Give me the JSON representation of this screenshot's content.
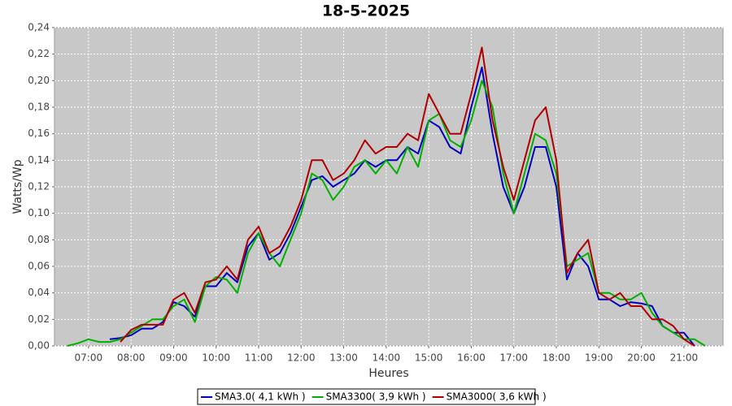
{
  "chart_data": {
    "type": "line",
    "title": "18-5-2025",
    "x_label": "Heures",
    "y_label": "Watts/Wp",
    "x": [
      6.5,
      6.75,
      7,
      7.25,
      7.5,
      7.75,
      8,
      8.25,
      8.5,
      8.75,
      9,
      9.25,
      9.5,
      9.75,
      10,
      10.25,
      10.5,
      10.75,
      11,
      11.25,
      11.5,
      11.75,
      12,
      12.25,
      12.5,
      12.75,
      13,
      13.25,
      13.5,
      13.75,
      14,
      14.25,
      14.5,
      14.75,
      15,
      15.25,
      15.5,
      15.75,
      16,
      16.25,
      16.5,
      16.75,
      17,
      17.25,
      17.5,
      17.75,
      18,
      18.25,
      18.5,
      18.75,
      19,
      19.25,
      19.5,
      19.75,
      20,
      20.25,
      20.5,
      20.75,
      21,
      21.25,
      21.5
    ],
    "series": [
      {
        "name": "SMA3.0( 4,1 kWh )",
        "color": "#0000c0",
        "values": [
          null,
          null,
          null,
          null,
          0.005,
          0.006,
          0.008,
          0.013,
          0.013,
          0.018,
          0.033,
          0.03,
          0.022,
          0.045,
          0.045,
          0.055,
          0.048,
          0.075,
          0.085,
          0.065,
          0.07,
          0.085,
          0.105,
          0.125,
          0.128,
          0.12,
          0.125,
          0.13,
          0.14,
          0.135,
          0.14,
          0.14,
          0.15,
          0.145,
          0.17,
          0.165,
          0.15,
          0.145,
          0.18,
          0.21,
          0.16,
          0.12,
          0.1,
          0.12,
          0.15,
          0.15,
          0.12,
          0.05,
          0.07,
          0.06,
          0.035,
          0.035,
          0.03,
          0.033,
          0.032,
          0.03,
          0.015,
          0.01,
          0.01,
          0,
          null
        ]
      },
      {
        "name": "SMA3300( 3,9 kWh )",
        "color": "#00b000",
        "values": [
          0,
          0.002,
          0.005,
          0.003,
          0.003,
          0.005,
          0.01,
          0.015,
          0.02,
          0.02,
          0.03,
          0.035,
          0.018,
          0.045,
          0.052,
          0.05,
          0.04,
          0.07,
          0.085,
          0.07,
          0.06,
          0.08,
          0.1,
          0.13,
          0.125,
          0.11,
          0.12,
          0.135,
          0.14,
          0.13,
          0.14,
          0.13,
          0.15,
          0.135,
          0.17,
          0.175,
          0.155,
          0.15,
          0.17,
          0.2,
          0.18,
          0.13,
          0.1,
          0.13,
          0.16,
          0.155,
          0.13,
          0.06,
          0.065,
          0.07,
          0.04,
          0.04,
          0.035,
          0.035,
          0.04,
          0.025,
          0.015,
          0.01,
          0.005,
          0.005,
          0
        ]
      },
      {
        "name": "SMA3000( 3,6 kWh )",
        "color": "#b00000",
        "values": [
          null,
          null,
          null,
          null,
          null,
          0.003,
          0.012,
          0.016,
          0.016,
          0.016,
          0.035,
          0.04,
          0.025,
          0.048,
          0.05,
          0.06,
          0.05,
          0.08,
          0.09,
          0.07,
          0.075,
          0.09,
          0.11,
          0.14,
          0.14,
          0.125,
          0.13,
          0.14,
          0.155,
          0.145,
          0.15,
          0.15,
          0.16,
          0.155,
          0.19,
          0.175,
          0.16,
          0.16,
          0.19,
          0.225,
          0.17,
          0.135,
          0.11,
          0.14,
          0.17,
          0.18,
          0.14,
          0.055,
          0.07,
          0.08,
          0.04,
          0.035,
          0.04,
          0.03,
          0.03,
          0.02,
          0.02,
          0.015,
          0.005,
          0,
          null
        ]
      }
    ],
    "xlim": [
      6.2,
      21.92
    ],
    "xticks": [
      {
        "value": 7,
        "label": "07:00"
      },
      {
        "value": 8,
        "label": "08:00"
      },
      {
        "value": 9,
        "label": "09:00"
      },
      {
        "value": 10,
        "label": "10:00"
      },
      {
        "value": 11,
        "label": "11:00"
      },
      {
        "value": 12,
        "label": "12:00"
      },
      {
        "value": 13,
        "label": "13:00"
      },
      {
        "value": 14,
        "label": "14:00"
      },
      {
        "value": 15,
        "label": "15:00"
      },
      {
        "value": 16,
        "label": "16:00"
      },
      {
        "value": 17,
        "label": "17:00"
      },
      {
        "value": 18,
        "label": "18:00"
      },
      {
        "value": 19,
        "label": "19:00"
      },
      {
        "value": 20,
        "label": "20:00"
      },
      {
        "value": 21,
        "label": "21:00"
      }
    ],
    "ylim": [
      0,
      0.24
    ],
    "yticks": [
      {
        "value": 0,
        "label": "0,00"
      },
      {
        "value": 0.02,
        "label": "0,02"
      },
      {
        "value": 0.04,
        "label": "0,04"
      },
      {
        "value": 0.06,
        "label": "0,06"
      },
      {
        "value": 0.08,
        "label": "0,08"
      },
      {
        "value": 0.1,
        "label": "0,10"
      },
      {
        "value": 0.12,
        "label": "0,12"
      },
      {
        "value": 0.14,
        "label": "0,14"
      },
      {
        "value": 0.16,
        "label": "0,16"
      },
      {
        "value": 0.18,
        "label": "0,18"
      },
      {
        "value": 0.2,
        "label": "0,20"
      },
      {
        "value": 0.22,
        "label": "0,22"
      },
      {
        "value": 0.24,
        "label": "0,24"
      }
    ],
    "grid": true
  }
}
